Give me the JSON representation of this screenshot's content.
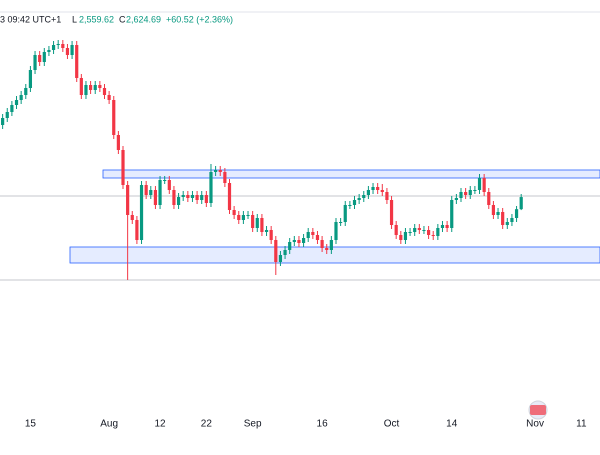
{
  "chart_data": {
    "type": "candlestick",
    "header": {
      "time": "3 09:42 UTC+1",
      "low_label": "L",
      "low": "2,559.62",
      "close_label": "C",
      "close": "2,624.69",
      "change": "+60.52 (+2.36%)"
    },
    "categories": [
      null,
      null,
      null,
      null,
      null,
      null,
      null,
      "15",
      null,
      null,
      null,
      null,
      null,
      null,
      null,
      null,
      null,
      null,
      null,
      null,
      null,
      null,
      null,
      null,
      "Aug",
      null,
      null,
      null,
      null,
      null,
      null,
      null,
      null,
      null,
      null,
      "12",
      null,
      null,
      null,
      null,
      null,
      null,
      null,
      null,
      null,
      "22",
      null,
      null,
      null,
      null,
      null,
      null,
      null,
      null,
      null,
      "Sep",
      null,
      null,
      null,
      null,
      null,
      null,
      null,
      null,
      null,
      null,
      null,
      null,
      null,
      null,
      "16",
      null,
      null,
      null,
      null,
      null,
      null,
      null,
      null,
      null,
      null,
      null,
      null,
      null,
      null,
      "Oct",
      null,
      null,
      null,
      null,
      null,
      null,
      null,
      null,
      null,
      null,
      null,
      null,
      "14",
      null,
      null,
      null,
      null,
      null,
      null,
      null,
      null,
      null,
      null,
      null,
      null,
      null,
      null,
      null,
      null,
      null,
      "Nov",
      null,
      null,
      null,
      null,
      null,
      null,
      null,
      null,
      null,
      "11",
      null,
      null
    ],
    "open": [
      2950,
      2985,
      3020,
      3050,
      3085,
      3110,
      3135,
      3170,
      3260,
      3335,
      3300,
      3350,
      3360,
      3385,
      3390,
      3370,
      3335,
      3385,
      3220,
      3135,
      3185,
      3160,
      3185,
      3170,
      3135,
      3110,
      2935,
      2860,
      2685,
      2535,
      2510,
      2410,
      2685,
      2635,
      2660,
      2585,
      2710,
      2710,
      2660,
      2585,
      2625,
      2635,
      2620,
      2635,
      2610,
      2635,
      2595,
      2750,
      2760,
      2750,
      2695,
      2560,
      2535,
      2510,
      2535,
      2535,
      2470,
      2520,
      2450,
      2460,
      2410,
      2300,
      2335,
      2360,
      2400,
      2410,
      2395,
      2420,
      2450,
      2435,
      2410,
      2370,
      2360,
      2410,
      2500,
      2500,
      2585,
      2585,
      2610,
      2620,
      2635,
      2660,
      2675,
      2660,
      2650,
      2610,
      2485,
      2435,
      2410,
      2450,
      2450,
      2470,
      2460,
      2460,
      2435,
      2430,
      2470,
      2485,
      2470,
      2610,
      2620,
      2650,
      2635,
      2660,
      2660,
      2720,
      2650,
      2585,
      2535,
      2550,
      2485,
      2500,
      2520,
      2564.17,
      null,
      null,
      null,
      null,
      null,
      null,
      null,
      null,
      null,
      null,
      null,
      null,
      null,
      null,
      null
    ],
    "high": [
      3005,
      3040,
      3070,
      3105,
      3130,
      3155,
      3190,
      3280,
      3355,
      3355,
      3370,
      3380,
      3405,
      3410,
      3410,
      3390,
      3405,
      3405,
      3240,
      3205,
      3205,
      3205,
      3205,
      3190,
      3155,
      3130,
      2955,
      2880,
      2705,
      2555,
      2530,
      2705,
      2705,
      2680,
      2680,
      2730,
      2730,
      2730,
      2680,
      2645,
      2655,
      2655,
      2655,
      2655,
      2655,
      2655,
      2790,
      2780,
      2780,
      2770,
      2715,
      2580,
      2555,
      2555,
      2555,
      2555,
      2540,
      2540,
      2480,
      2480,
      2430,
      2355,
      2380,
      2420,
      2430,
      2430,
      2440,
      2470,
      2470,
      2455,
      2430,
      2390,
      2430,
      2520,
      2520,
      2605,
      2605,
      2630,
      2640,
      2655,
      2680,
      2695,
      2695,
      2690,
      2670,
      2630,
      2505,
      2455,
      2470,
      2470,
      2490,
      2490,
      2480,
      2480,
      2455,
      2490,
      2505,
      2505,
      2630,
      2640,
      2670,
      2670,
      2680,
      2680,
      2740,
      2740,
      2670,
      2605,
      2570,
      2570,
      2520,
      2540,
      2580,
      2640,
      null,
      null,
      null,
      null,
      null,
      null,
      null,
      null,
      null,
      null,
      null,
      null,
      null,
      null,
      null
    ],
    "low": [
      2930,
      2965,
      3000,
      3030,
      3065,
      3090,
      3115,
      3150,
      3240,
      3280,
      3280,
      3330,
      3340,
      3365,
      3350,
      3315,
      3315,
      3200,
      3115,
      3115,
      3140,
      3140,
      3150,
      3115,
      3090,
      2915,
      2840,
      2665,
      2210,
      2490,
      2390,
      2390,
      2615,
      2615,
      2565,
      2565,
      2690,
      2640,
      2565,
      2565,
      2605,
      2600,
      2600,
      2590,
      2590,
      2575,
      2575,
      2730,
      2730,
      2675,
      2540,
      2515,
      2490,
      2490,
      2515,
      2450,
      2450,
      2430,
      2430,
      2390,
      2235,
      2280,
      2315,
      2340,
      2380,
      2375,
      2375,
      2400,
      2415,
      2390,
      2350,
      2340,
      2340,
      2390,
      2480,
      2480,
      2565,
      2565,
      2590,
      2600,
      2615,
      2640,
      2640,
      2630,
      2590,
      2465,
      2415,
      2390,
      2390,
      2430,
      2430,
      2440,
      2440,
      2415,
      2410,
      2410,
      2450,
      2450,
      2450,
      2590,
      2600,
      2615,
      2615,
      2640,
      2640,
      2630,
      2565,
      2515,
      2515,
      2465,
      2465,
      2480,
      2500,
      2559.62,
      null,
      null,
      null,
      null,
      null,
      null,
      null,
      null,
      null,
      null,
      null,
      null,
      null,
      null,
      null
    ],
    "close": [
      2985,
      3020,
      3050,
      3085,
      3110,
      3135,
      3170,
      3260,
      3335,
      3300,
      3350,
      3360,
      3385,
      3390,
      3370,
      3335,
      3385,
      3220,
      3135,
      3185,
      3160,
      3185,
      3170,
      3135,
      3110,
      2935,
      2860,
      2685,
      2535,
      2510,
      2410,
      2685,
      2635,
      2660,
      2585,
      2710,
      2710,
      2660,
      2585,
      2625,
      2635,
      2620,
      2635,
      2610,
      2635,
      2595,
      2750,
      2760,
      2750,
      2695,
      2560,
      2535,
      2510,
      2535,
      2535,
      2470,
      2520,
      2450,
      2460,
      2410,
      2300,
      2335,
      2360,
      2400,
      2410,
      2395,
      2420,
      2450,
      2435,
      2410,
      2370,
      2360,
      2410,
      2500,
      2500,
      2585,
      2585,
      2610,
      2620,
      2635,
      2660,
      2675,
      2660,
      2650,
      2610,
      2485,
      2435,
      2410,
      2450,
      2450,
      2470,
      2460,
      2460,
      2435,
      2430,
      2470,
      2485,
      2470,
      2610,
      2620,
      2650,
      2635,
      2660,
      2660,
      2720,
      2650,
      2585,
      2535,
      2550,
      2485,
      2500,
      2520,
      2564.17,
      2624.69,
      null,
      null,
      null,
      null,
      null,
      null,
      null,
      null,
      null,
      null,
      null,
      null,
      null,
      null,
      null
    ],
    "up_color": "#089981",
    "down_color": "#f23645",
    "zones": [
      {
        "top": 2760,
        "bottom": 2720
      },
      {
        "top": 2375,
        "bottom": 2295
      }
    ],
    "levels": [
      2630,
      2210
    ],
    "ylim": [
      1460,
      3610
    ]
  }
}
